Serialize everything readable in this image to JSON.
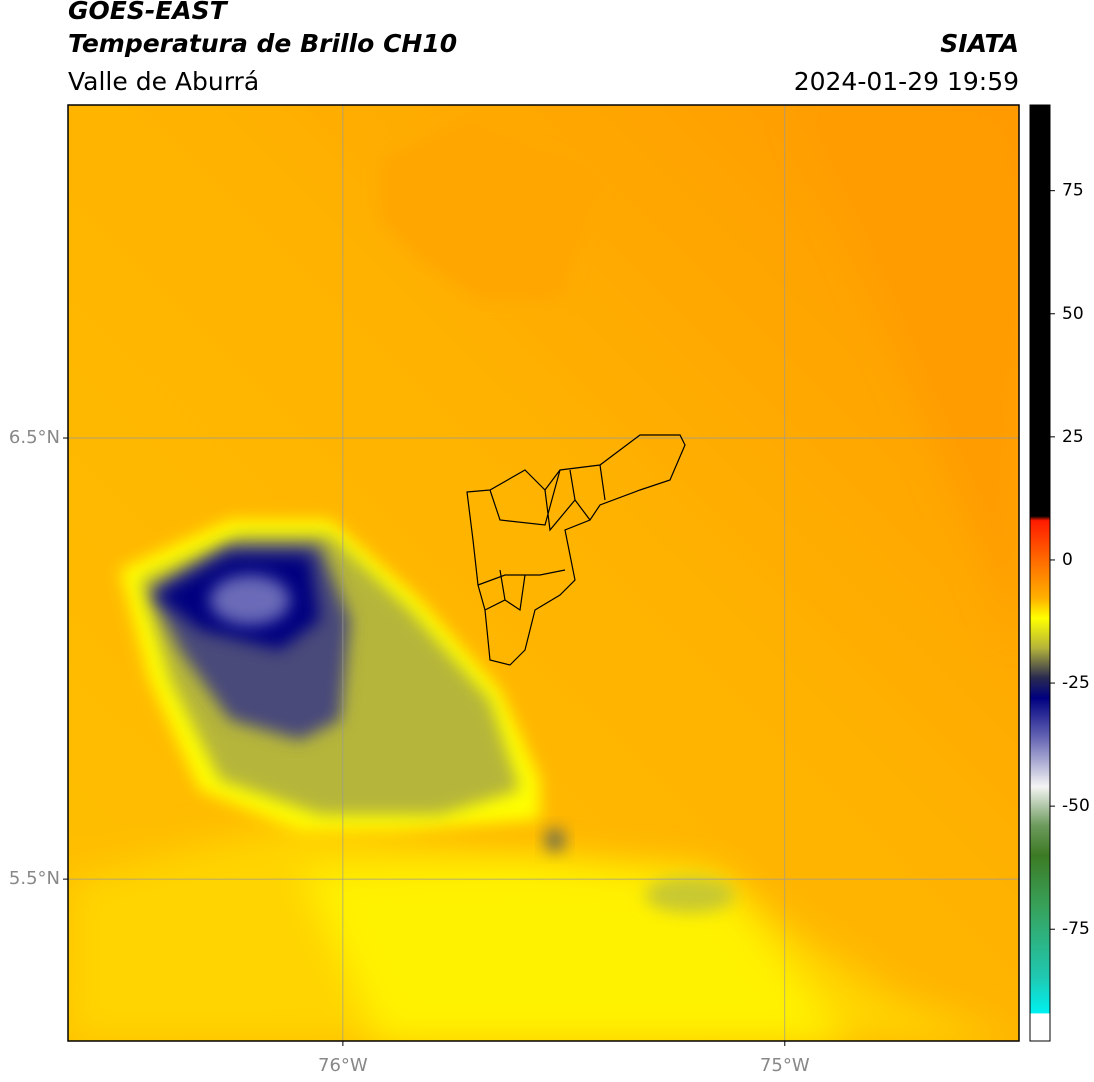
{
  "header": {
    "title": "GOES-EAST",
    "subtitle": "Temperatura de Brillo CH10",
    "region": "Valle de Aburrá",
    "source": "SIATA",
    "datetime": "2024-01-29 19:59"
  },
  "map": {
    "xlim": [
      -76.622,
      -74.47
    ],
    "ylim": [
      5.133,
      7.255
    ],
    "xticks": [
      {
        "value": -76,
        "label": "76°W"
      },
      {
        "value": -75,
        "label": "75°W"
      }
    ],
    "yticks": [
      {
        "value": 6.5,
        "label": "6.5°N"
      },
      {
        "value": 5.5,
        "label": "5.5°N"
      }
    ],
    "grid": true
  },
  "colorbar": {
    "lim": [
      -97.7,
      92.4
    ],
    "ticks": [
      75,
      50,
      25,
      0,
      -25,
      -50,
      -75
    ],
    "colors": [
      [
        -97.7,
        "#ffffff"
      ],
      [
        -92.2,
        "#ffffff"
      ],
      [
        -92,
        "#00f0f0"
      ],
      [
        -84.6,
        "#20c8b0"
      ],
      [
        -70,
        "#38a058"
      ],
      [
        -60,
        "#3c7a24"
      ],
      [
        -54,
        "#6c9a5c"
      ],
      [
        -46,
        "#f4f4f4"
      ],
      [
        -36,
        "#6464b4"
      ],
      [
        -28,
        "#000080"
      ],
      [
        -23.9,
        "#2a2a50"
      ],
      [
        -17.8,
        "#b5b53a"
      ],
      [
        -11.8,
        "#ffff00"
      ],
      [
        -7.7,
        "#ffb000"
      ],
      [
        0,
        "#ff6a00"
      ],
      [
        8,
        "#ff1a00"
      ],
      [
        8.9,
        "#000000"
      ],
      [
        92.4,
        "#000000"
      ]
    ]
  }
}
